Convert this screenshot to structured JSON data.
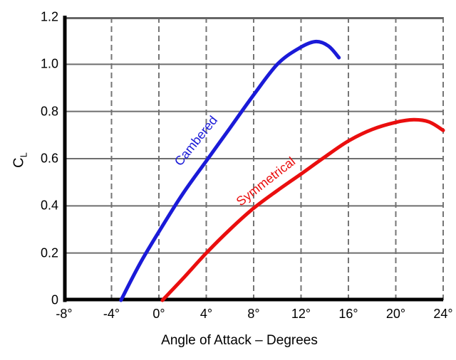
{
  "colors": {
    "background": "#ffffff",
    "axis": "#000000",
    "top_border": "#666666",
    "gridline_solid": "#6e6e6e",
    "gridline_dashed": "#757575",
    "text": "#000000",
    "cambered_blue": "#1a1ad8",
    "symmetrical_red": "#ea0e0e"
  },
  "chart_data": {
    "type": "line",
    "title": "",
    "xlabel": "Angle of Attack – Degrees",
    "ylabel_main": "C",
    "ylabel_sub": "L",
    "xlim": [
      -8,
      24
    ],
    "ylim": [
      0,
      1.2
    ],
    "grid": {
      "horizontal": "solid",
      "vertical": "dashed",
      "right_border": "dashed",
      "top_border": "solid"
    },
    "x_ticks": [
      {
        "value": -8,
        "label": "-8°"
      },
      {
        "value": -4,
        "label": "-4°"
      },
      {
        "value": 0,
        "label": "0°"
      },
      {
        "value": 4,
        "label": "4°"
      },
      {
        "value": 8,
        "label": "8°"
      },
      {
        "value": 12,
        "label": "12°"
      },
      {
        "value": 16,
        "label": "16°"
      },
      {
        "value": 20,
        "label": "20°"
      },
      {
        "value": 24,
        "label": "24°"
      }
    ],
    "y_ticks": [
      {
        "value": 0,
        "label": "0"
      },
      {
        "value": 0.2,
        "label": "0.2"
      },
      {
        "value": 0.4,
        "label": "0.4"
      },
      {
        "value": 0.6,
        "label": "0.6"
      },
      {
        "value": 0.8,
        "label": "0.8"
      },
      {
        "value": 1.0,
        "label": "1.0"
      },
      {
        "value": 1.2,
        "label": "1.2"
      }
    ],
    "series": [
      {
        "name": "Cambered",
        "color": "#1a1ad8",
        "zero_lift_angle_deg": -3.2,
        "max_cl": 1.1,
        "stall_angle_deg": 13.2,
        "points": [
          [
            -3.2,
            0
          ],
          [
            -1.6,
            0.155
          ],
          [
            0,
            0.29
          ],
          [
            2,
            0.45
          ],
          [
            4,
            0.59
          ],
          [
            6,
            0.73
          ],
          [
            8,
            0.87
          ],
          [
            10,
            1.0
          ],
          [
            11.8,
            1.067
          ],
          [
            13.2,
            1.096
          ],
          [
            14.3,
            1.078
          ],
          [
            15.2,
            1.028
          ]
        ],
        "label": {
          "text": "Cambered",
          "x_deg": 3.1,
          "y_cl": 0.675,
          "rotation_deg": -51
        }
      },
      {
        "name": "Symmetrical",
        "color": "#ea0e0e",
        "zero_lift_angle_deg": 0.3,
        "max_cl": 0.765,
        "stall_angle_deg": 21.5,
        "points": [
          [
            0.3,
            0
          ],
          [
            2,
            0.09
          ],
          [
            4,
            0.2
          ],
          [
            6,
            0.3
          ],
          [
            8,
            0.39
          ],
          [
            10,
            0.465
          ],
          [
            12,
            0.535
          ],
          [
            14,
            0.607
          ],
          [
            16,
            0.675
          ],
          [
            18,
            0.724
          ],
          [
            20,
            0.754
          ],
          [
            21.5,
            0.765
          ],
          [
            22.8,
            0.756
          ],
          [
            24,
            0.72
          ]
        ],
        "label": {
          "text": "Symmetrical",
          "x_deg": 9.0,
          "y_cl": 0.503,
          "rotation_deg": -38
        }
      }
    ]
  }
}
